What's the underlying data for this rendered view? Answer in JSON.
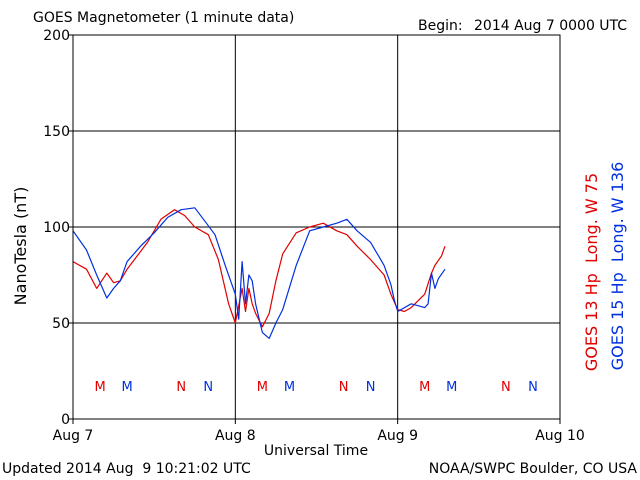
{
  "header": {
    "title": "GOES Magnetometer (1 minute data)",
    "begin_label": "Begin:",
    "begin_value": "2014 Aug 7 0000 UTC"
  },
  "footer": {
    "updated": "Updated 2014 Aug  9 10:21:02 UTC",
    "credit": "NOAA/SWPC Boulder, CO USA"
  },
  "chart_data": {
    "type": "line",
    "title": "GOES Magnetometer (1 minute data)",
    "xlabel": "Universal Time",
    "ylabel": "NanoTesla (nT)",
    "xlim": [
      0,
      72
    ],
    "ylim": [
      0,
      200
    ],
    "grid": true,
    "x_unit": "hours since Aug 7 0000 UTC",
    "x_ticks": [
      {
        "label": "Aug 7",
        "x": 0
      },
      {
        "label": "Aug 8",
        "x": 24
      },
      {
        "label": "Aug 9",
        "x": 48
      },
      {
        "label": "Aug 10",
        "x": 72
      }
    ],
    "y_ticks": [
      0,
      50,
      100,
      150,
      200
    ],
    "legend_placement": "right, vertical",
    "series": [
      {
        "name": "GOES 13 Hp  Long. W 75",
        "color": "#e00000",
        "x": [
          0,
          2,
          3.5,
          5,
          6,
          7,
          8,
          9.5,
          11,
          13,
          15,
          16.5,
          18,
          20,
          21.5,
          23,
          24,
          25,
          25.5,
          26,
          26.5,
          27,
          28,
          29,
          30,
          31,
          33,
          35,
          37,
          39,
          40.5,
          42,
          44,
          46,
          47,
          48,
          49,
          50,
          52,
          53,
          53.5,
          54.5,
          55
        ],
        "y": [
          82,
          78,
          68,
          76,
          71,
          72,
          78,
          85,
          92,
          104,
          109,
          106,
          100,
          96,
          83,
          60,
          50,
          68,
          56,
          68,
          60,
          55,
          48,
          55,
          72,
          86,
          97,
          100,
          102,
          98,
          96,
          90,
          83,
          75,
          65,
          57,
          56,
          58,
          65,
          76,
          80,
          85,
          90
        ]
      },
      {
        "name": "GOES 15 Hp  Long. W 136",
        "color": "#0030e0",
        "x": [
          0,
          2,
          3.5,
          5,
          6,
          7,
          8,
          10,
          12,
          14,
          16,
          18,
          19.5,
          21,
          22.5,
          24,
          24.5,
          25,
          25.5,
          26,
          26.5,
          27,
          28,
          29,
          30,
          31,
          33,
          35,
          37,
          39,
          40.5,
          42,
          44,
          46,
          47,
          47.5,
          48,
          50,
          52,
          52.5,
          53,
          53.5,
          54,
          55
        ],
        "y": [
          98,
          88,
          75,
          63,
          68,
          72,
          82,
          90,
          97,
          105,
          109,
          110,
          103,
          96,
          80,
          65,
          52,
          82,
          60,
          75,
          72,
          60,
          45,
          42,
          50,
          57,
          80,
          98,
          100,
          102,
          104,
          98,
          92,
          80,
          70,
          62,
          56,
          60,
          58,
          60,
          76,
          68,
          73,
          78
        ]
      }
    ],
    "markers": [
      {
        "label": "M",
        "x": 4,
        "series": 0
      },
      {
        "label": "M",
        "x": 8,
        "series": 1
      },
      {
        "label": "N",
        "x": 16,
        "series": 0
      },
      {
        "label": "N",
        "x": 20,
        "series": 1
      },
      {
        "label": "M",
        "x": 28,
        "series": 0
      },
      {
        "label": "M",
        "x": 32,
        "series": 1
      },
      {
        "label": "N",
        "x": 40,
        "series": 0
      },
      {
        "label": "N",
        "x": 44,
        "series": 1
      },
      {
        "label": "M",
        "x": 52,
        "series": 0
      },
      {
        "label": "M",
        "x": 56,
        "series": 1
      },
      {
        "label": "N",
        "x": 64,
        "series": 0
      },
      {
        "label": "N",
        "x": 68,
        "series": 1
      }
    ]
  }
}
